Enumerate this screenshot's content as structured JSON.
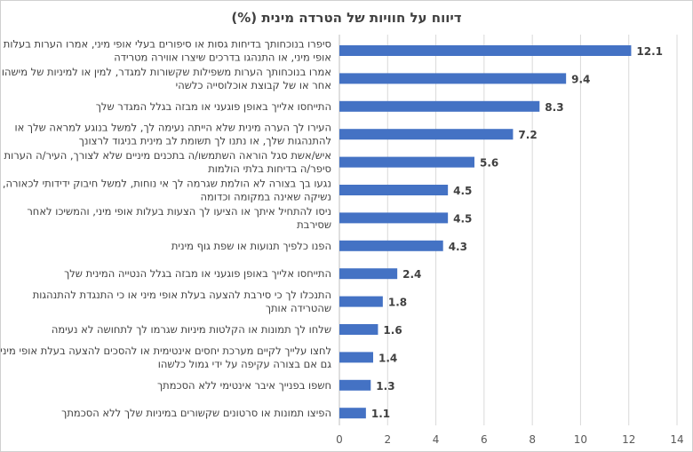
{
  "chart_data": {
    "type": "bar",
    "orientation": "horizontal",
    "title": "דיווח על חוויות של הטרדה מינית (%)",
    "xlabel": "",
    "ylabel": "",
    "xlim": [
      0,
      14
    ],
    "xticks": [
      0,
      2,
      4,
      6,
      8,
      10,
      12,
      14
    ],
    "grid": "vertical",
    "legend": "none",
    "bar_color": "#4472C4",
    "categories": [
      [
        "סיפרו בנוכחותך בדיחות גסות או סיפורים בעלי אופי מיני, אמרו הערות בעלות",
        "אופי מיני, או התנהגו בדרכים שיצרו אווירה מטרידה"
      ],
      [
        "אמרו בנוכחותך הערות משפילות שקשורות למגדר, למין או למיניות של מישהו",
        "אחר או של קבוצת אוכלוסייה כלשהי"
      ],
      [
        "התייחסו אלייך באופן פוגעני או מבזה בגלל המגדר שלך"
      ],
      [
        "העירו לך הערה מינית שלא הייתה נעימה לך, למשל בנוגע למראה שלך או",
        "להתנהגות שלך, או נתנו לך תשומת לב מינית בניגוד לרצונך"
      ],
      [
        "איש/אשת סגל הוראה השתמשו/ה בתכנים מיניים שלא לצורך, העיר/ה הערות או",
        "סיפר/ה בדיחות בלתי הולמות"
      ],
      [
        "נגעו בך בצורה לא הולמת שגרמה לך אי נוחות, למשל חיבוק ידידותי לכאורה,",
        "נשיקה שאינה במקומה וכדומה"
      ],
      [
        "ניסו להתחיל איתך או הציעו לך הצעות בעלות אופי מיני, והמשיכו לאחר",
        "שסירבת"
      ],
      [
        "הפנו כלפיך תנועות או שפת גוף מינית"
      ],
      [
        "התייחסו אלייך באופן פוגעני או מבזה בגלל הנטייה המינית שלך"
      ],
      [
        "התנכלו לך כי סירבת להצעה בעלת אופי מיני או כי התנגדת להתנהגות",
        "שהטרידה אותך"
      ],
      [
        "שלחו לך תמונות או הקלטות מיניות שגרמו לך לתחושה לא נעימה"
      ],
      [
        "לחצו עלייך לקיים מערכת יחסים אינטימית או להסכים להצעה בעלת אופי מיני,",
        "גם אם בצורה עקיפה על ידי גמול כלשהו"
      ],
      [
        "חשפו בפנייך איבר אינטימי ללא הסכמתך"
      ],
      [
        "הפיצו תמונות או סרטונים שקשורים במיניות שלך ללא הסכמתך"
      ]
    ],
    "values": [
      12.1,
      9.4,
      8.3,
      7.2,
      5.6,
      4.5,
      4.5,
      4.3,
      2.4,
      1.8,
      1.6,
      1.4,
      1.3,
      1.1
    ],
    "value_labels": [
      "12.1",
      "9.4",
      "8.3",
      "7.2",
      "5.6",
      "4.5",
      "4.5",
      "4.3",
      "2.4",
      "1.8",
      "1.6",
      "1.4",
      "1.3",
      "1.1"
    ]
  }
}
